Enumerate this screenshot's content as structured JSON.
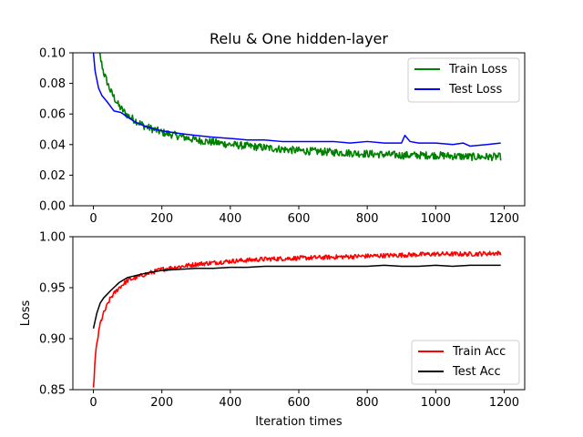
{
  "chart_data": [
    {
      "type": "line",
      "title": "Relu & One hidden-layer",
      "xlabel": "",
      "ylabel": "",
      "xlim": [
        -60,
        1260
      ],
      "ylim": [
        0.0,
        0.1
      ],
      "xticks": [
        "0",
        "200",
        "400",
        "600",
        "800",
        "1000",
        "1200"
      ],
      "yticks": [
        "0.00",
        "0.02",
        "0.04",
        "0.06",
        "0.08",
        "0.10"
      ],
      "legend_position": "top-right",
      "grid": false,
      "series": [
        {
          "name": "Train Loss",
          "color": "#008000",
          "noise": 0.0025,
          "x": [
            0,
            10,
            20,
            30,
            50,
            75,
            100,
            150,
            200,
            300,
            400,
            500,
            600,
            700,
            800,
            900,
            1000,
            1100,
            1200
          ],
          "y": [
            0.14,
            0.11,
            0.097,
            0.087,
            0.075,
            0.065,
            0.059,
            0.052,
            0.048,
            0.043,
            0.04,
            0.038,
            0.036,
            0.035,
            0.034,
            0.033,
            0.033,
            0.032,
            0.032
          ]
        },
        {
          "name": "Test Loss",
          "color": "#0000ff",
          "noise": 0.0,
          "x": [
            0,
            5,
            15,
            25,
            40,
            60,
            80,
            100,
            120,
            150,
            180,
            200,
            230,
            260,
            300,
            340,
            400,
            450,
            500,
            550,
            600,
            650,
            700,
            750,
            800,
            850,
            900,
            910,
            925,
            950,
            1000,
            1050,
            1080,
            1100,
            1150,
            1190
          ],
          "y": [
            0.1,
            0.088,
            0.077,
            0.072,
            0.068,
            0.062,
            0.061,
            0.058,
            0.055,
            0.052,
            0.05,
            0.049,
            0.048,
            0.047,
            0.046,
            0.045,
            0.044,
            0.043,
            0.043,
            0.042,
            0.042,
            0.042,
            0.042,
            0.041,
            0.042,
            0.041,
            0.041,
            0.046,
            0.042,
            0.041,
            0.041,
            0.04,
            0.041,
            0.039,
            0.04,
            0.041
          ]
        }
      ]
    },
    {
      "type": "line",
      "title": "",
      "xlabel": "Iteration times",
      "ylabel": "Loss",
      "xlim": [
        -60,
        1260
      ],
      "ylim": [
        0.85,
        1.0
      ],
      "xticks": [
        "0",
        "200",
        "400",
        "600",
        "800",
        "1000",
        "1200"
      ],
      "yticks": [
        "0.85",
        "0.90",
        "0.95",
        "1.00"
      ],
      "legend_position": "bottom-right",
      "grid": false,
      "series": [
        {
          "name": "Train Acc",
          "color": "#ff0000",
          "noise": 0.0022,
          "x": [
            0,
            5,
            10,
            20,
            30,
            50,
            75,
            100,
            150,
            200,
            300,
            400,
            500,
            600,
            700,
            800,
            900,
            1000,
            1100,
            1200
          ],
          "y": [
            0.85,
            0.88,
            0.895,
            0.915,
            0.925,
            0.94,
            0.95,
            0.957,
            0.963,
            0.968,
            0.973,
            0.976,
            0.978,
            0.979,
            0.98,
            0.981,
            0.982,
            0.983,
            0.983,
            0.984
          ]
        },
        {
          "name": "Test Acc",
          "color": "#000000",
          "noise": 0.0,
          "x": [
            0,
            10,
            20,
            30,
            50,
            75,
            100,
            150,
            200,
            250,
            300,
            350,
            400,
            450,
            500,
            550,
            600,
            650,
            700,
            750,
            800,
            850,
            900,
            950,
            1000,
            1050,
            1100,
            1150,
            1190
          ],
          "y": [
            0.91,
            0.925,
            0.935,
            0.94,
            0.947,
            0.955,
            0.96,
            0.964,
            0.967,
            0.968,
            0.969,
            0.969,
            0.97,
            0.97,
            0.971,
            0.971,
            0.971,
            0.971,
            0.971,
            0.971,
            0.971,
            0.972,
            0.971,
            0.971,
            0.972,
            0.971,
            0.972,
            0.972,
            0.972
          ]
        }
      ]
    }
  ]
}
